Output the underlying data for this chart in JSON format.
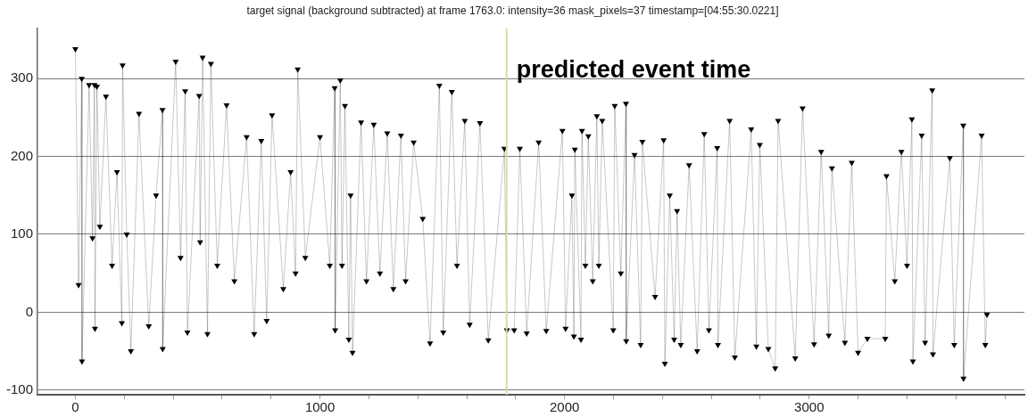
{
  "chart_data": {
    "type": "line",
    "title": "target signal (background subtracted) at frame 1763.0: intensity=36 mask_pixels=37 timestamp=[04:55:30.0221]",
    "x": [
      0,
      13,
      26,
      27,
      56,
      70,
      78,
      80,
      88,
      100,
      125,
      150,
      170,
      190,
      193,
      210,
      227,
      260,
      300,
      330,
      356,
      357,
      410,
      430,
      449,
      458,
      506,
      510,
      520,
      540,
      554,
      580,
      618,
      650,
      700,
      731,
      760,
      782,
      804,
      850,
      880,
      900,
      909,
      940,
      1000,
      1040,
      1060,
      1062,
      1083,
      1090,
      1102,
      1118,
      1125,
      1133,
      1168,
      1190,
      1220,
      1245,
      1275,
      1300,
      1331,
      1350,
      1383,
      1420,
      1450,
      1488,
      1504,
      1539,
      1560,
      1592,
      1612,
      1654,
      1688,
      1754,
      1764,
      1794,
      1817,
      1845,
      1894,
      1925,
      1991,
      2004,
      2030,
      2038,
      2042,
      2067,
      2071,
      2085,
      2097,
      2115,
      2132,
      2140,
      2154,
      2199,
      2205,
      2230,
      2251,
      2252,
      2286,
      2311,
      2318,
      2370,
      2405,
      2410,
      2430,
      2448,
      2460,
      2475,
      2509,
      2542,
      2571,
      2590,
      2624,
      2627,
      2675,
      2696,
      2763,
      2784,
      2798,
      2833,
      2861,
      2873,
      2943,
      2973,
      3020,
      3049,
      3080,
      3093,
      3146,
      3174,
      3200,
      3238,
      3311,
      3316,
      3350,
      3377,
      3400,
      3420,
      3424,
      3460,
      3474,
      3503,
      3506,
      3575,
      3593,
      3630,
      3631,
      3705,
      3720,
      3727
    ],
    "series": [
      {
        "color": "#000000",
        "values": [
          338,
          35,
          300,
          -63,
          292,
          95,
          292,
          -21,
          290,
          110,
          277,
          60,
          180,
          -14,
          317,
          100,
          -50,
          255,
          -18,
          150,
          260,
          -47,
          322,
          70,
          284,
          -26,
          278,
          90,
          327,
          -28,
          319,
          60,
          266,
          40,
          225,
          -28,
          220,
          -11,
          253,
          30,
          180,
          50,
          312,
          70,
          225,
          60,
          288,
          -23,
          298,
          60,
          265,
          -35,
          150,
          -52,
          244,
          40,
          241,
          50,
          230,
          30,
          227,
          40,
          218,
          120,
          -40,
          291,
          -26,
          283,
          60,
          246,
          -16,
          243,
          -36,
          210,
          -23,
          -23,
          210,
          -27,
          218,
          -24,
          233,
          -21,
          150,
          -31,
          209,
          -35,
          233,
          60,
          226,
          40,
          252,
          60,
          246,
          -23,
          265,
          50,
          268,
          -37,
          202,
          -42,
          219,
          20,
          221,
          -66,
          150,
          -35,
          130,
          -42,
          189,
          -50,
          229,
          -23,
          211,
          -42,
          246,
          -58,
          235,
          -44,
          215,
          -47,
          -72,
          246,
          -59,
          262,
          -41,
          206,
          -30,
          185,
          -39,
          192,
          -52,
          -34,
          -34,
          175,
          40,
          206,
          60,
          248,
          -63,
          227,
          -39,
          285,
          -54,
          198,
          -42,
          240,
          -85,
          227,
          -42,
          -3
        ]
      }
    ],
    "xlim": [
      -155,
      3880
    ],
    "xticks": [
      0,
      {
        "value": 200,
        "label": null
      },
      {
        "value": 400,
        "label": null
      },
      {
        "value": 600,
        "label": null
      },
      {
        "value": 800,
        "label": null
      },
      1000,
      {
        "value": 1200,
        "label": null
      },
      {
        "value": 1400,
        "label": null
      },
      {
        "value": 1600,
        "label": null
      },
      {
        "value": 1800,
        "label": null
      },
      2000,
      {
        "value": 2200,
        "label": null
      },
      {
        "value": 2400,
        "label": null
      },
      {
        "value": 2600,
        "label": null
      },
      {
        "value": 2800,
        "label": null
      },
      3000,
      {
        "value": 3200,
        "label": null
      },
      {
        "value": 3400,
        "label": null
      },
      {
        "value": 3600,
        "label": null
      },
      {
        "value": 3800,
        "label": null
      }
    ],
    "ylim": [
      -106,
      365
    ],
    "yticks": [
      -100,
      0,
      100,
      200,
      300
    ],
    "grid": "y",
    "marker": "triangle",
    "line_style": "solid",
    "ref_lines": [
      {
        "axis": "x",
        "value": 1763,
        "label": "predicted event time",
        "color": "#dcdca8"
      }
    ]
  }
}
